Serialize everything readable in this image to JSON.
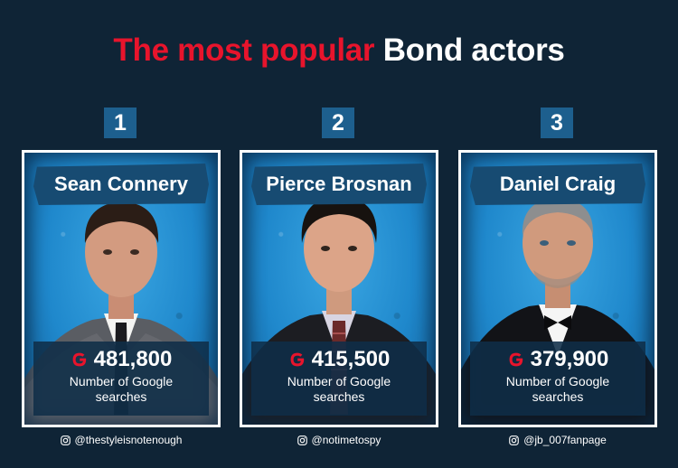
{
  "title": {
    "part_red": "The most popular",
    "part_white": "Bond actors"
  },
  "colors": {
    "background": "#0f2436",
    "accent_red": "#e8142c",
    "badge_blue": "#1d5f8e",
    "card_blue": "#1f88cc"
  },
  "actors": [
    {
      "rank": "1",
      "name": "Sean Connery",
      "searches": "481,800",
      "caption": "Number of Google searches",
      "credit": "@thestyleisnotenough"
    },
    {
      "rank": "2",
      "name": "Pierce Brosnan",
      "searches": "415,500",
      "caption": "Number of Google searches",
      "credit": "@notimetospy"
    },
    {
      "rank": "3",
      "name": "Daniel Craig",
      "searches": "379,900",
      "caption": "Number of Google searches",
      "credit": "@jb_007fanpage"
    }
  ],
  "icons": {
    "search_engine": "google-g-icon",
    "social": "instagram-icon"
  }
}
